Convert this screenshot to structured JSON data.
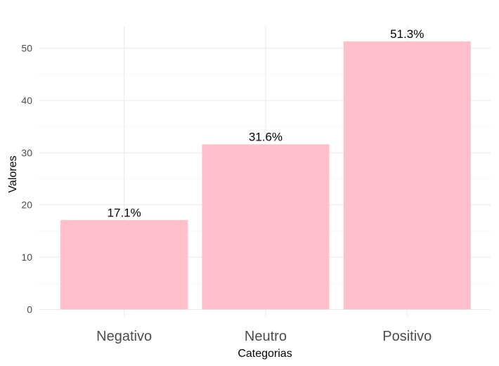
{
  "chart_data": {
    "type": "bar",
    "categories": [
      "Negativo",
      "Neutro",
      "Positivo"
    ],
    "values": [
      17.1,
      31.6,
      51.3
    ],
    "data_labels": [
      "17.1%",
      "31.6%",
      "51.3%"
    ],
    "title": "",
    "xlabel": "Categorias",
    "ylabel": "Valores",
    "ylim": [
      0,
      54
    ],
    "yticks": [
      0,
      10,
      20,
      30,
      40,
      50
    ],
    "ytick_labels": [
      "0",
      "10",
      "20",
      "30",
      "40",
      "50"
    ],
    "grid": true,
    "legend": "none",
    "bar_color": "#ffc0cb",
    "grid_color": "#ebebeb"
  }
}
